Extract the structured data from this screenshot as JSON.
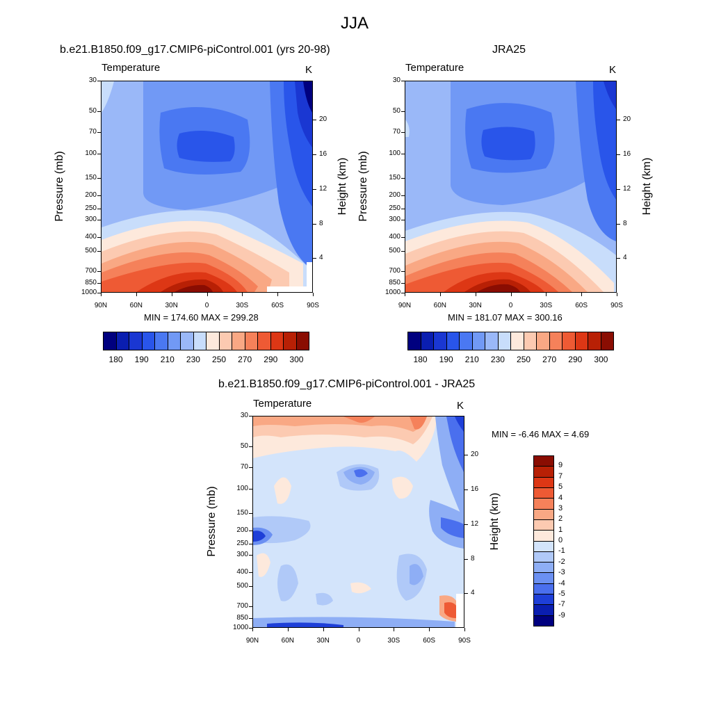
{
  "page_title": "JJA",
  "chart_data": [
    {
      "type": "contour",
      "title": "b.e21.B1850.f09_g17.CMIP6-piControl.001 (yrs 20-98)",
      "variable": "Temperature",
      "units": "K",
      "xlabel": "",
      "ylabel": "Pressure (mb)",
      "y2label": "Height (km)",
      "x_ticks": [
        "90N",
        "60N",
        "30N",
        "0",
        "30S",
        "60S",
        "90S"
      ],
      "y_ticks": [
        "30",
        "50",
        "70",
        "100",
        "150",
        "200",
        "250",
        "300",
        "400",
        "500",
        "700",
        "850",
        "1000"
      ],
      "y2_ticks": [
        "20",
        "16",
        "12",
        "8",
        "4"
      ],
      "stats": "MIN = 174.60  MAX = 299.28",
      "levels": [
        "180",
        "190",
        "210",
        "230",
        "250",
        "270",
        "290",
        "300"
      ],
      "colors": [
        "#00007f",
        "#0a1eb0",
        "#1a37d2",
        "#2955ea",
        "#4a78f2",
        "#7199f5",
        "#9ab8f8",
        "#c8ddfb",
        "#fde9dc",
        "#fccab1",
        "#f9a884",
        "#f5815a",
        "#ee5a34",
        "#dd3715",
        "#b82005",
        "#8a0d02"
      ],
      "ylog": true,
      "ylim": [
        1000,
        30
      ]
    },
    {
      "type": "contour",
      "title": "JRA25",
      "variable": "Temperature",
      "units": "K",
      "xlabel": "",
      "ylabel": "Pressure (mb)",
      "y2label": "Height (km)",
      "x_ticks": [
        "90N",
        "60N",
        "30N",
        "0",
        "30S",
        "60S",
        "90S"
      ],
      "y_ticks": [
        "30",
        "50",
        "70",
        "100",
        "150",
        "200",
        "250",
        "300",
        "400",
        "500",
        "700",
        "850",
        "1000"
      ],
      "y2_ticks": [
        "20",
        "16",
        "12",
        "8",
        "4"
      ],
      "stats": "MIN = 181.07  MAX = 300.16",
      "levels": [
        "180",
        "190",
        "210",
        "230",
        "250",
        "270",
        "290",
        "300"
      ],
      "colors": [
        "#00007f",
        "#0a1eb0",
        "#1a37d2",
        "#2955ea",
        "#4a78f2",
        "#7199f5",
        "#9ab8f8",
        "#c8ddfb",
        "#fde9dc",
        "#fccab1",
        "#f9a884",
        "#f5815a",
        "#ee5a34",
        "#dd3715",
        "#b82005",
        "#8a0d02"
      ],
      "ylog": true,
      "ylim": [
        1000,
        30
      ]
    },
    {
      "type": "contour",
      "title": "b.e21.B1850.f09_g17.CMIP6-piControl.001 - JRA25",
      "variable": "Temperature",
      "units": "K",
      "xlabel": "",
      "ylabel": "Pressure (mb)",
      "y2label": "Height (km)",
      "x_ticks": [
        "90N",
        "60N",
        "30N",
        "0",
        "30S",
        "60S",
        "90S"
      ],
      "y_ticks": [
        "30",
        "50",
        "70",
        "100",
        "150",
        "200",
        "250",
        "300",
        "400",
        "500",
        "700",
        "850",
        "1000"
      ],
      "y2_ticks": [
        "20",
        "16",
        "12",
        "8",
        "4"
      ],
      "stats": "MIN =  -6.46  MAX =   4.69",
      "levels": [
        "9",
        "7",
        "5",
        "4",
        "3",
        "2",
        "1",
        "0",
        "-1",
        "-2",
        "-3",
        "-4",
        "-5",
        "-7",
        "-9"
      ],
      "colors": [
        "#8a0d02",
        "#b82005",
        "#dd3715",
        "#ee5a34",
        "#f5815a",
        "#f9a884",
        "#fccab1",
        "#fde9dc",
        "#d3e4fb",
        "#b0c9f8",
        "#8eaef5",
        "#6b90f2",
        "#4a6fee",
        "#1e3fd8",
        "#0a1eb0",
        "#00007f"
      ],
      "ylog": true,
      "ylim": [
        1000,
        30
      ]
    }
  ]
}
